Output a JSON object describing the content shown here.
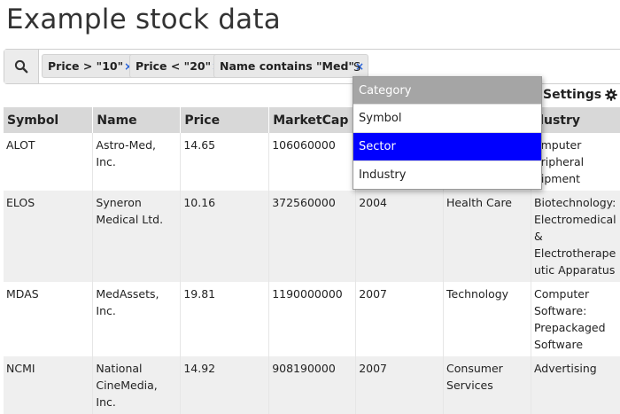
{
  "page": {
    "title": "Example stock data"
  },
  "search": {
    "chips": [
      {
        "label": "Price > \"10\"",
        "remove": "×"
      },
      {
        "label": "Price < \"20\"",
        "remove": "×"
      },
      {
        "label": "Name contains \"Med\"",
        "remove": "×"
      }
    ],
    "query": "S"
  },
  "settings": {
    "label": "Settings"
  },
  "dropdown": {
    "header": "Category",
    "items": [
      "Symbol",
      "Sector",
      "Industry"
    ],
    "selected": "Sector"
  },
  "table": {
    "columns": [
      "Symbol",
      "Name",
      "Price",
      "MarketCap",
      "",
      "",
      "dustry"
    ],
    "rows": [
      [
        "ALOT",
        "Astro-Med, Inc.",
        "14.65",
        "106060000",
        "",
        "",
        "omputer\neripheral\nuipment"
      ],
      [
        "ELOS",
        "Syneron\nMedical Ltd.",
        "10.16",
        "372560000",
        "2004",
        "Health Care",
        "Biotechnology:\nElectromedical\n&\nElectrotherape\nutic Apparatus"
      ],
      [
        "MDAS",
        "MedAssets, Inc.",
        "19.81",
        "1190000000",
        "2007",
        "Technology",
        "Computer\nSoftware:\nPrepackaged\nSoftware"
      ],
      [
        "NCMI",
        "National\nCineMedia, Inc.",
        "14.92",
        "908190000",
        "2007",
        "Consumer\nServices",
        "Advertising"
      ]
    ]
  }
}
